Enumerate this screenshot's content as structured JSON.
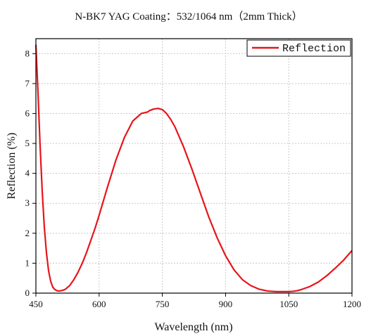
{
  "chart_data": {
    "type": "line",
    "title": "N-BK7 YAG Coating：532/1064 nm（2mm Thick）",
    "xlabel": "Wavelength (nm)",
    "ylabel": "Reflection (%)",
    "xlim": [
      450,
      1200
    ],
    "ylim": [
      0,
      8.5
    ],
    "xticks": [
      450,
      600,
      750,
      900,
      1050,
      1200
    ],
    "yticks": [
      0,
      1,
      2,
      3,
      4,
      5,
      6,
      7,
      8
    ],
    "grid": true,
    "legend_position": "top-right",
    "series": [
      {
        "name": "Reflection",
        "color": "#e8141a",
        "x": [
          450,
          455,
          460,
          465,
          470,
          475,
          480,
          485,
          490,
          495,
          500,
          505,
          510,
          515,
          520,
          530,
          540,
          550,
          560,
          570,
          580,
          590,
          600,
          620,
          640,
          660,
          680,
          700,
          715,
          720,
          730,
          740,
          750,
          760,
          770,
          780,
          800,
          820,
          840,
          860,
          880,
          900,
          920,
          940,
          960,
          980,
          1000,
          1020,
          1040,
          1050,
          1060,
          1070,
          1080,
          1100,
          1120,
          1140,
          1160,
          1180,
          1200
        ],
        "y": [
          8.3,
          6.7,
          4.9,
          3.4,
          2.2,
          1.35,
          0.75,
          0.4,
          0.2,
          0.12,
          0.08,
          0.07,
          0.08,
          0.1,
          0.13,
          0.25,
          0.45,
          0.7,
          1.0,
          1.35,
          1.75,
          2.15,
          2.6,
          3.55,
          4.45,
          5.2,
          5.75,
          6.0,
          6.05,
          6.1,
          6.15,
          6.17,
          6.13,
          6.0,
          5.8,
          5.55,
          4.9,
          4.15,
          3.35,
          2.55,
          1.85,
          1.25,
          0.78,
          0.45,
          0.25,
          0.13,
          0.07,
          0.05,
          0.05,
          0.05,
          0.06,
          0.08,
          0.12,
          0.22,
          0.37,
          0.58,
          0.83,
          1.1,
          1.42
        ]
      }
    ]
  }
}
